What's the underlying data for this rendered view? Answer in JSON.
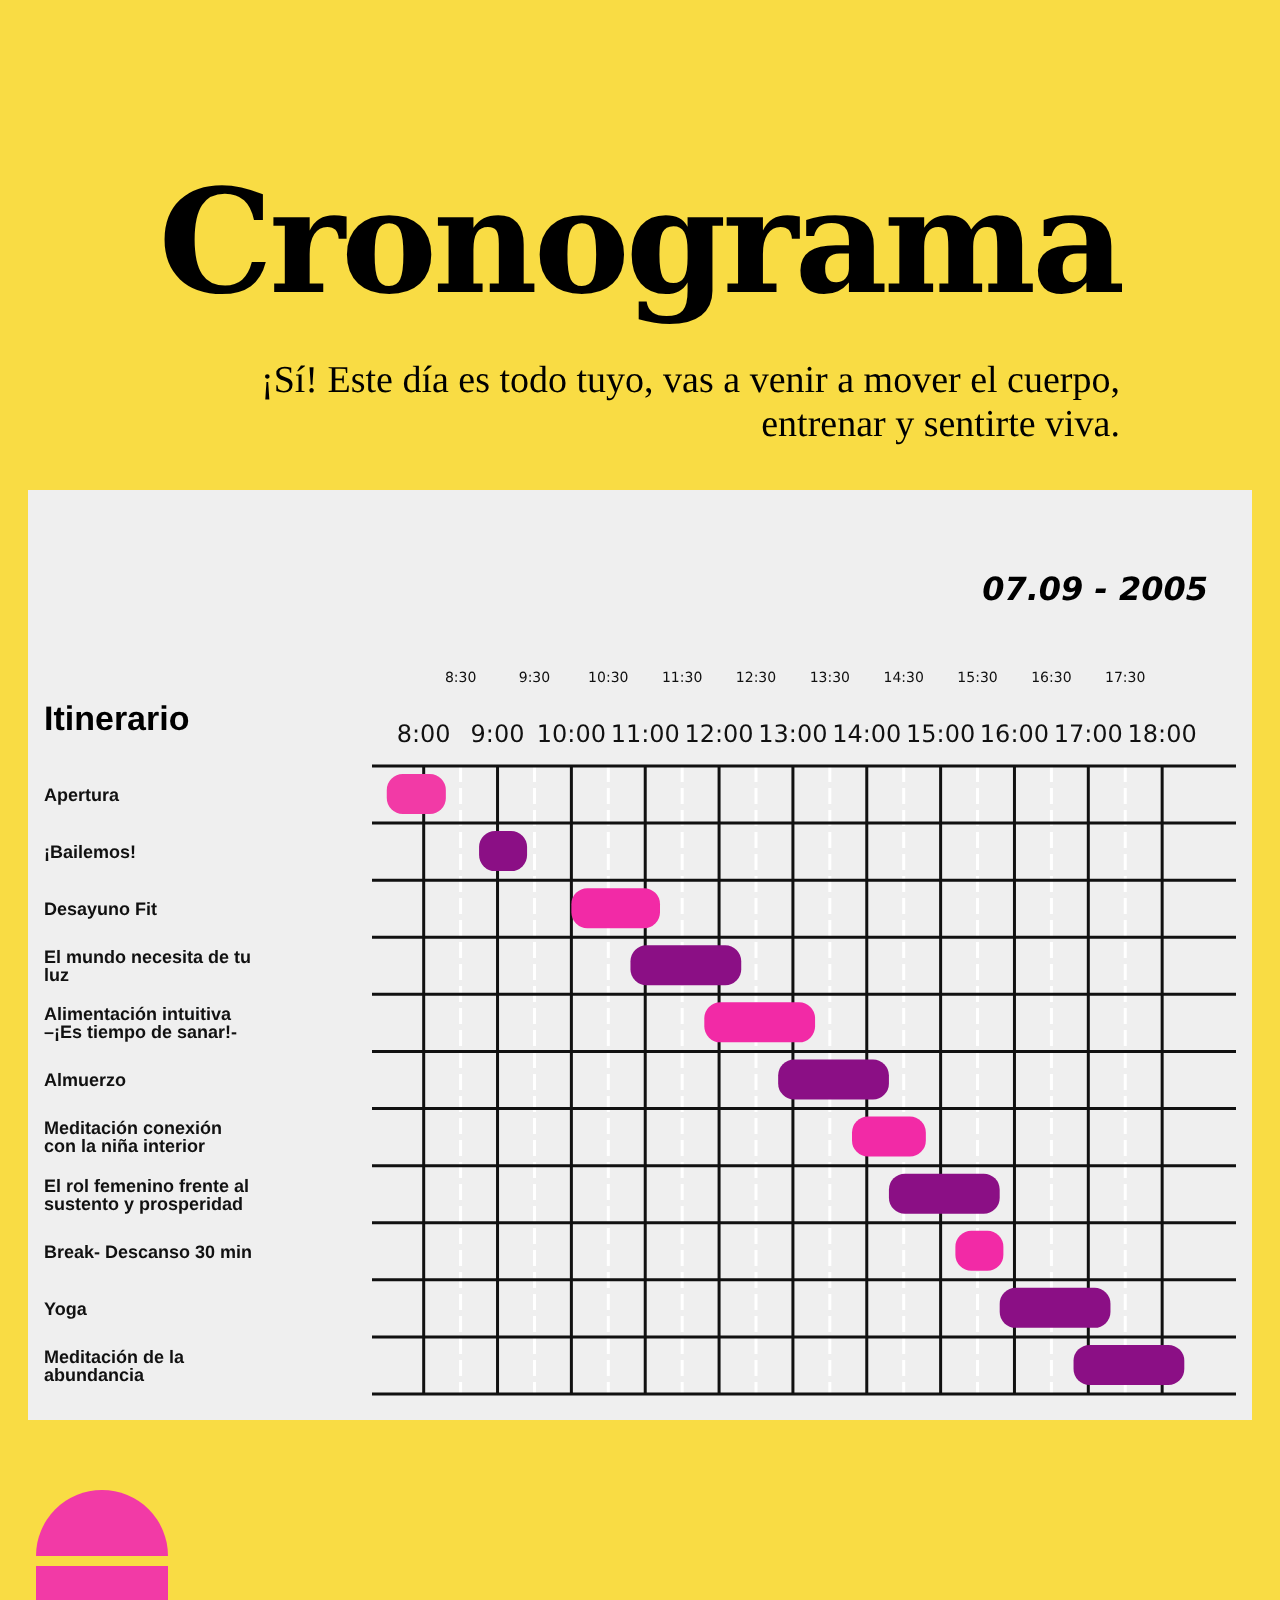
{
  "chart_data": {
    "type": "bar",
    "orientation": "horizontal",
    "title": "Cronograma",
    "subtitle": "¡Sí! Este día es todo tuyo, vas a venir a mover el cuerpo, entrenar y sentirte viva.",
    "ylabel": "Itinerario",
    "annotations": [
      "07.09 - 2005"
    ],
    "categories": [
      "Apertura",
      "¡Bailemos!",
      "Desayuno Fit",
      "El mundo necesita de tu luz",
      "Alimentación intuitiva –¡Es tiempo de sanar!-",
      "Almuerzo",
      "Meditación conexión con la niña interior",
      "El rol femenino frente al sustento y prosperidad",
      "Break- Descanso 30 min",
      "Yoga",
      "Meditación de la abundancia"
    ],
    "base": [
      7.5,
      8.75,
      10.0,
      10.8,
      11.8,
      12.8,
      13.8,
      14.3,
      15.2,
      15.8,
      16.8
    ],
    "values": [
      0.8,
      0.65,
      1.2,
      1.5,
      1.5,
      1.5,
      1.0,
      1.5,
      0.65,
      1.5,
      1.5
    ],
    "colors": [
      "#f23aa6",
      "#8b0f85",
      "#f22aa6",
      "#8b0f85",
      "#f22aa6",
      "#8b0f85",
      "#f22aa6",
      "#8b0f85",
      "#f22aa6",
      "#8b0f85",
      "#8b0f85"
    ],
    "xlim": [
      7.3,
      19
    ],
    "xticks": [
      {
        "value": 8,
        "label": "8:00"
      },
      {
        "value": 9,
        "label": "9:00"
      },
      {
        "value": 10,
        "label": "10:00"
      },
      {
        "value": 11,
        "label": "11:00"
      },
      {
        "value": 12,
        "label": "12:00"
      },
      {
        "value": 13,
        "label": "13:00"
      },
      {
        "value": 14,
        "label": "14:00"
      },
      {
        "value": 15,
        "label": "15:00"
      },
      {
        "value": 16,
        "label": "16:00"
      },
      {
        "value": 17,
        "label": "17:00"
      },
      {
        "value": 18,
        "label": "18:00"
      }
    ],
    "x2lim": [
      7.3,
      19
    ],
    "x2ticks": [
      {
        "value": 8.5,
        "label": "8:30"
      },
      {
        "value": 9.5,
        "label": "9:30"
      },
      {
        "value": 10.5,
        "label": "10:30"
      },
      {
        "value": 11.5,
        "label": "11:30"
      },
      {
        "value": 12.5,
        "label": "12:30"
      },
      {
        "value": 13.5,
        "label": "13:30"
      },
      {
        "value": 14.5,
        "label": "14:30"
      },
      {
        "value": 15.5,
        "label": "15:30"
      },
      {
        "value": 16.5,
        "label": "16:30"
      },
      {
        "value": 17.5,
        "label": "17:30"
      }
    ],
    "grid": true
  }
}
